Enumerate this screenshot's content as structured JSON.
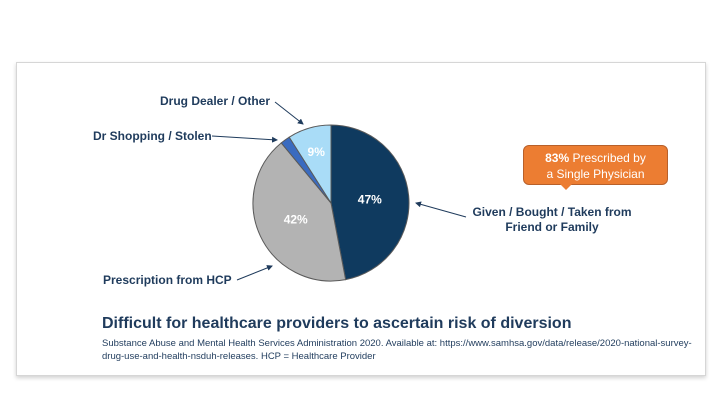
{
  "chart_data": {
    "type": "pie",
    "start": "top",
    "direction": "clockwise",
    "slices": [
      {
        "label": "Given / Bought / Taken from Friend or Family",
        "value": 47,
        "data_label": "47%",
        "color": "#0f3a5f"
      },
      {
        "label": "Prescription from HCP",
        "value": 42,
        "data_label": "42%",
        "color": "#b3b3b3"
      },
      {
        "label": "Dr Shopping / Stolen",
        "value": 2,
        "data_label": "",
        "color": "#3a6bc0"
      },
      {
        "label": "Drug Dealer / Other",
        "value": 9,
        "data_label": "9%",
        "color": "#a9dcf7"
      }
    ]
  },
  "labels": {
    "friend": [
      "Given / Bought / Taken from",
      "Friend or Family"
    ],
    "hcp": "Prescription from HCP",
    "dr_shopping": "Dr Shopping / Stolen",
    "dealer": "Drug Dealer / Other"
  },
  "callout": {
    "bold": "83%",
    "rest": " Prescribed by",
    "line2": "a Single Physician",
    "color": "#ec7d32"
  },
  "title": "Difficult for healthcare providers to ascertain risk of diversion",
  "source": "Substance Abuse and Mental Health Services Administration 2020. Available at: https://www.samhsa.gov/data/release/2020-national-survey-drug-use-and-health-nsduh-releases. HCP = Healthcare Provider"
}
